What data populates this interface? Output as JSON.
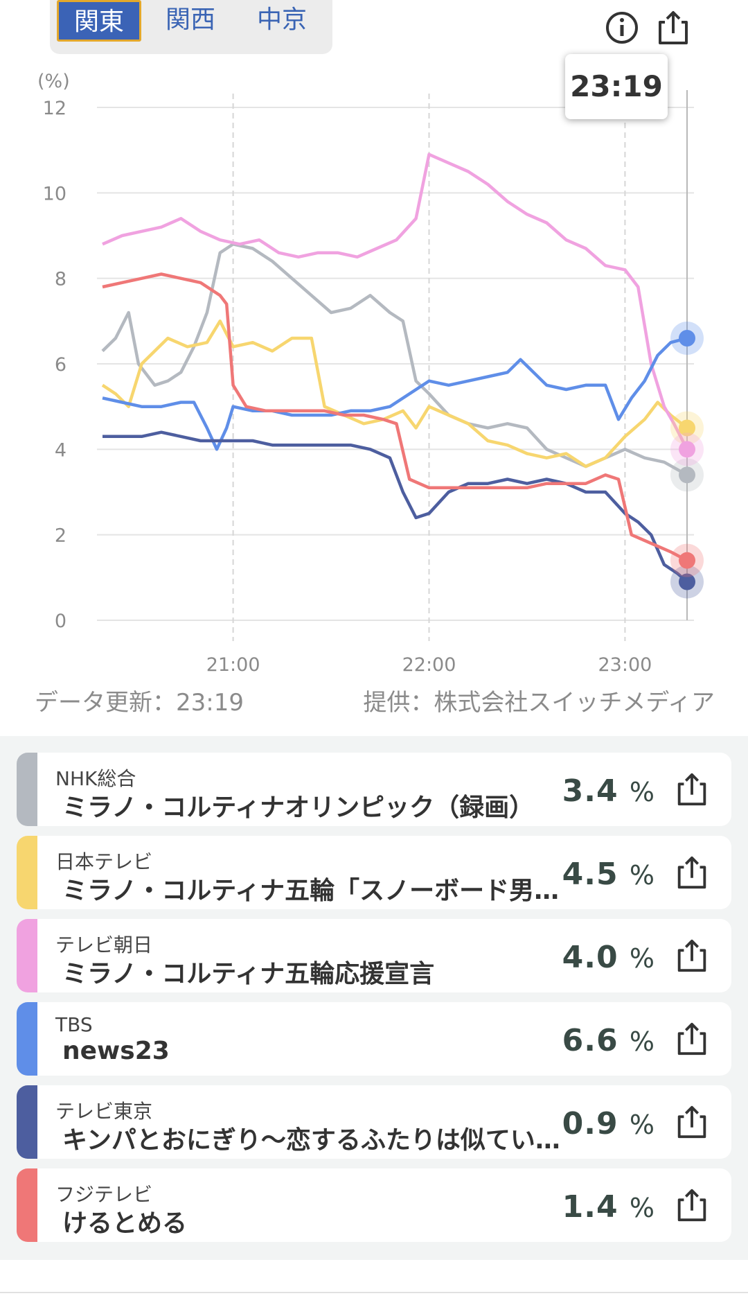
{
  "tabs": [
    {
      "label": "関東",
      "active": true
    },
    {
      "label": "関西",
      "active": false
    },
    {
      "label": "中京",
      "active": false
    }
  ],
  "icons": {
    "info": "info-icon",
    "share": "share-icon"
  },
  "tooltip": "23:19",
  "update_text": "データ更新：23:19",
  "provider_text": "提供：株式会社スイッチメディア",
  "chart_data": {
    "type": "line",
    "ylabel": "(%)",
    "ylim": [
      0,
      12
    ],
    "yticks": [
      "0",
      "2",
      "4",
      "6",
      "8",
      "10",
      "12"
    ],
    "xlim": [
      "20:20",
      "23:19"
    ],
    "xticks": [
      "21:00",
      "22:00",
      "23:00"
    ],
    "grid": true,
    "cursor_time": "23:19",
    "series": [
      {
        "name": "NHK総合",
        "color": "#b4b9c0",
        "points": [
          [
            "20:20",
            6.3
          ],
          [
            "20:24",
            6.6
          ],
          [
            "20:28",
            7.2
          ],
          [
            "20:31",
            6.0
          ],
          [
            "20:36",
            5.5
          ],
          [
            "20:40",
            5.6
          ],
          [
            "20:44",
            5.8
          ],
          [
            "20:48",
            6.4
          ],
          [
            "20:52",
            7.2
          ],
          [
            "20:56",
            8.6
          ],
          [
            "21:00",
            8.8
          ],
          [
            "21:06",
            8.7
          ],
          [
            "21:12",
            8.4
          ],
          [
            "21:18",
            8.0
          ],
          [
            "21:24",
            7.6
          ],
          [
            "21:30",
            7.2
          ],
          [
            "21:36",
            7.3
          ],
          [
            "21:42",
            7.6
          ],
          [
            "21:48",
            7.2
          ],
          [
            "21:52",
            7.0
          ],
          [
            "21:56",
            5.6
          ],
          [
            "22:00",
            5.3
          ],
          [
            "22:06",
            4.8
          ],
          [
            "22:12",
            4.6
          ],
          [
            "22:18",
            4.5
          ],
          [
            "22:24",
            4.6
          ],
          [
            "22:30",
            4.5
          ],
          [
            "22:36",
            4.0
          ],
          [
            "22:42",
            3.8
          ],
          [
            "22:48",
            3.6
          ],
          [
            "22:54",
            3.8
          ],
          [
            "23:00",
            4.0
          ],
          [
            "23:06",
            3.8
          ],
          [
            "23:12",
            3.7
          ],
          [
            "23:19",
            3.4
          ]
        ]
      },
      {
        "name": "日本テレビ",
        "color": "#f7d66f",
        "points": [
          [
            "20:20",
            5.5
          ],
          [
            "20:24",
            5.3
          ],
          [
            "20:28",
            5.0
          ],
          [
            "20:32",
            6.0
          ],
          [
            "20:36",
            6.3
          ],
          [
            "20:40",
            6.6
          ],
          [
            "20:46",
            6.4
          ],
          [
            "20:52",
            6.5
          ],
          [
            "20:56",
            7.0
          ],
          [
            "21:00",
            6.4
          ],
          [
            "21:06",
            6.5
          ],
          [
            "21:12",
            6.3
          ],
          [
            "21:18",
            6.6
          ],
          [
            "21:24",
            6.6
          ],
          [
            "21:28",
            5.0
          ],
          [
            "21:34",
            4.8
          ],
          [
            "21:40",
            4.6
          ],
          [
            "21:46",
            4.7
          ],
          [
            "21:52",
            4.9
          ],
          [
            "21:56",
            4.5
          ],
          [
            "22:00",
            5.0
          ],
          [
            "22:06",
            4.8
          ],
          [
            "22:12",
            4.6
          ],
          [
            "22:18",
            4.2
          ],
          [
            "22:24",
            4.1
          ],
          [
            "22:30",
            3.9
          ],
          [
            "22:36",
            3.8
          ],
          [
            "22:42",
            3.9
          ],
          [
            "22:48",
            3.6
          ],
          [
            "22:54",
            3.8
          ],
          [
            "23:00",
            4.3
          ],
          [
            "23:06",
            4.7
          ],
          [
            "23:10",
            5.1
          ],
          [
            "23:14",
            4.8
          ],
          [
            "23:19",
            4.5
          ]
        ]
      },
      {
        "name": "テレビ朝日",
        "color": "#f0a2e0",
        "points": [
          [
            "20:20",
            8.8
          ],
          [
            "20:26",
            9.0
          ],
          [
            "20:32",
            9.1
          ],
          [
            "20:38",
            9.2
          ],
          [
            "20:44",
            9.4
          ],
          [
            "20:50",
            9.1
          ],
          [
            "20:56",
            8.9
          ],
          [
            "21:02",
            8.8
          ],
          [
            "21:08",
            8.9
          ],
          [
            "21:14",
            8.6
          ],
          [
            "21:20",
            8.5
          ],
          [
            "21:26",
            8.6
          ],
          [
            "21:32",
            8.6
          ],
          [
            "21:38",
            8.5
          ],
          [
            "21:44",
            8.7
          ],
          [
            "21:50",
            8.9
          ],
          [
            "21:56",
            9.4
          ],
          [
            "22:00",
            10.9
          ],
          [
            "22:06",
            10.7
          ],
          [
            "22:12",
            10.5
          ],
          [
            "22:18",
            10.2
          ],
          [
            "22:24",
            9.8
          ],
          [
            "22:30",
            9.5
          ],
          [
            "22:36",
            9.3
          ],
          [
            "22:42",
            8.9
          ],
          [
            "22:48",
            8.7
          ],
          [
            "22:54",
            8.3
          ],
          [
            "23:00",
            8.2
          ],
          [
            "23:04",
            7.8
          ],
          [
            "23:08",
            6.0
          ],
          [
            "23:12",
            5.0
          ],
          [
            "23:15",
            4.6
          ],
          [
            "23:19",
            4.0
          ]
        ]
      },
      {
        "name": "TBS",
        "color": "#5f8ee8",
        "points": [
          [
            "20:20",
            5.2
          ],
          [
            "20:26",
            5.1
          ],
          [
            "20:32",
            5.0
          ],
          [
            "20:38",
            5.0
          ],
          [
            "20:44",
            5.1
          ],
          [
            "20:48",
            5.1
          ],
          [
            "20:52",
            4.5
          ],
          [
            "20:55",
            4.0
          ],
          [
            "20:58",
            4.5
          ],
          [
            "21:00",
            5.0
          ],
          [
            "21:06",
            4.9
          ],
          [
            "21:12",
            4.9
          ],
          [
            "21:18",
            4.8
          ],
          [
            "21:24",
            4.8
          ],
          [
            "21:30",
            4.8
          ],
          [
            "21:36",
            4.9
          ],
          [
            "21:42",
            4.9
          ],
          [
            "21:48",
            5.0
          ],
          [
            "21:54",
            5.3
          ],
          [
            "22:00",
            5.6
          ],
          [
            "22:06",
            5.5
          ],
          [
            "22:12",
            5.6
          ],
          [
            "22:18",
            5.7
          ],
          [
            "22:24",
            5.8
          ],
          [
            "22:28",
            6.1
          ],
          [
            "22:32",
            5.8
          ],
          [
            "22:36",
            5.5
          ],
          [
            "22:42",
            5.4
          ],
          [
            "22:48",
            5.5
          ],
          [
            "22:54",
            5.5
          ],
          [
            "22:58",
            4.7
          ],
          [
            "23:02",
            5.2
          ],
          [
            "23:06",
            5.6
          ],
          [
            "23:10",
            6.2
          ],
          [
            "23:14",
            6.5
          ],
          [
            "23:19",
            6.6
          ]
        ]
      },
      {
        "name": "テレビ東京",
        "color": "#4d5e9f",
        "points": [
          [
            "20:20",
            4.3
          ],
          [
            "20:26",
            4.3
          ],
          [
            "20:32",
            4.3
          ],
          [
            "20:38",
            4.4
          ],
          [
            "20:44",
            4.3
          ],
          [
            "20:50",
            4.2
          ],
          [
            "20:56",
            4.2
          ],
          [
            "21:00",
            4.2
          ],
          [
            "21:06",
            4.2
          ],
          [
            "21:12",
            4.1
          ],
          [
            "21:18",
            4.1
          ],
          [
            "21:24",
            4.1
          ],
          [
            "21:30",
            4.1
          ],
          [
            "21:36",
            4.1
          ],
          [
            "21:42",
            4.0
          ],
          [
            "21:48",
            3.8
          ],
          [
            "21:52",
            3.0
          ],
          [
            "21:56",
            2.4
          ],
          [
            "22:00",
            2.5
          ],
          [
            "22:06",
            3.0
          ],
          [
            "22:12",
            3.2
          ],
          [
            "22:18",
            3.2
          ],
          [
            "22:24",
            3.3
          ],
          [
            "22:30",
            3.2
          ],
          [
            "22:36",
            3.3
          ],
          [
            "22:42",
            3.2
          ],
          [
            "22:48",
            3.0
          ],
          [
            "22:54",
            3.0
          ],
          [
            "23:00",
            2.5
          ],
          [
            "23:04",
            2.3
          ],
          [
            "23:08",
            2.0
          ],
          [
            "23:12",
            1.3
          ],
          [
            "23:16",
            1.1
          ],
          [
            "23:19",
            0.9
          ]
        ]
      },
      {
        "name": "フジテレビ",
        "color": "#ef7777",
        "points": [
          [
            "20:20",
            7.8
          ],
          [
            "20:26",
            7.9
          ],
          [
            "20:32",
            8.0
          ],
          [
            "20:38",
            8.1
          ],
          [
            "20:44",
            8.0
          ],
          [
            "20:50",
            7.9
          ],
          [
            "20:56",
            7.6
          ],
          [
            "20:58",
            7.4
          ],
          [
            "21:00",
            5.5
          ],
          [
            "21:04",
            5.0
          ],
          [
            "21:10",
            4.9
          ],
          [
            "21:16",
            4.9
          ],
          [
            "21:22",
            4.9
          ],
          [
            "21:28",
            4.9
          ],
          [
            "21:34",
            4.8
          ],
          [
            "21:40",
            4.8
          ],
          [
            "21:46",
            4.7
          ],
          [
            "21:50",
            4.6
          ],
          [
            "21:54",
            3.3
          ],
          [
            "22:00",
            3.1
          ],
          [
            "22:06",
            3.1
          ],
          [
            "22:12",
            3.1
          ],
          [
            "22:18",
            3.1
          ],
          [
            "22:24",
            3.1
          ],
          [
            "22:30",
            3.1
          ],
          [
            "22:36",
            3.2
          ],
          [
            "22:42",
            3.2
          ],
          [
            "22:48",
            3.2
          ],
          [
            "22:54",
            3.4
          ],
          [
            "22:58",
            3.3
          ],
          [
            "23:02",
            2.0
          ],
          [
            "23:08",
            1.8
          ],
          [
            "23:14",
            1.6
          ],
          [
            "23:19",
            1.4
          ]
        ]
      }
    ]
  },
  "programs": [
    {
      "channel": "NHK総合",
      "title": "ミラノ・コルティナオリンピック（録画）",
      "rating": "3.4",
      "unit": "%",
      "color": "#b4b9c0"
    },
    {
      "channel": "日本テレビ",
      "title": "ミラノ・コルティナ五輪「スノーボード男…",
      "rating": "4.5",
      "unit": "%",
      "color": "#f7d66f"
    },
    {
      "channel": "テレビ朝日",
      "title": "ミラノ・コルティナ五輪応援宣言",
      "rating": "4.0",
      "unit": "%",
      "color": "#f0a2e0"
    },
    {
      "channel": "TBS",
      "title": "news23",
      "rating": "6.6",
      "unit": "%",
      "color": "#5f8ee8"
    },
    {
      "channel": "テレビ東京",
      "title": "キンパとおにぎり〜恋するふたりは似てい…",
      "rating": "0.9",
      "unit": "%",
      "color": "#4d5e9f"
    },
    {
      "channel": "フジテレビ",
      "title": "けるとめる",
      "rating": "1.4",
      "unit": "%",
      "color": "#ef7777"
    }
  ]
}
